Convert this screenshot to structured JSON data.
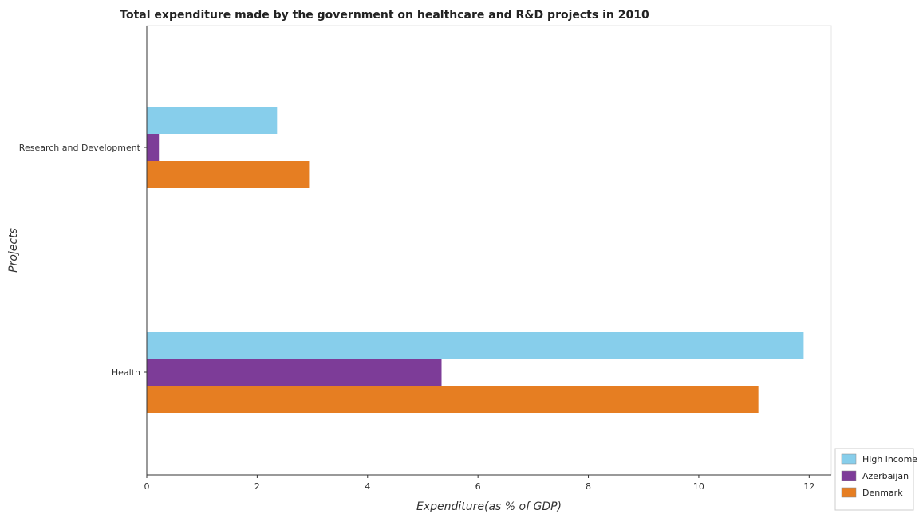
{
  "chart_data": {
    "type": "bar",
    "orientation": "horizontal",
    "title": "Total expenditure made by the government on healthcare and R&D projects in 2010",
    "xlabel": "Expenditure(as % of GDP)",
    "ylabel": "Projects",
    "categories": [
      "Health",
      "Research and Development"
    ],
    "xlim": [
      0,
      12.4
    ],
    "xticks": [
      0,
      2,
      4,
      6,
      8,
      10,
      12
    ],
    "grid": false,
    "legend_position": "bottom-right",
    "series": [
      {
        "name": "High income",
        "color": "#87ceeb",
        "values": [
          11.9,
          2.36
        ]
      },
      {
        "name": "Azerbaijan",
        "color": "#7d3c98",
        "values": [
          5.34,
          0.22
        ]
      },
      {
        "name": "Denmark",
        "color": "#e67e22",
        "values": [
          11.08,
          2.94
        ]
      }
    ]
  }
}
